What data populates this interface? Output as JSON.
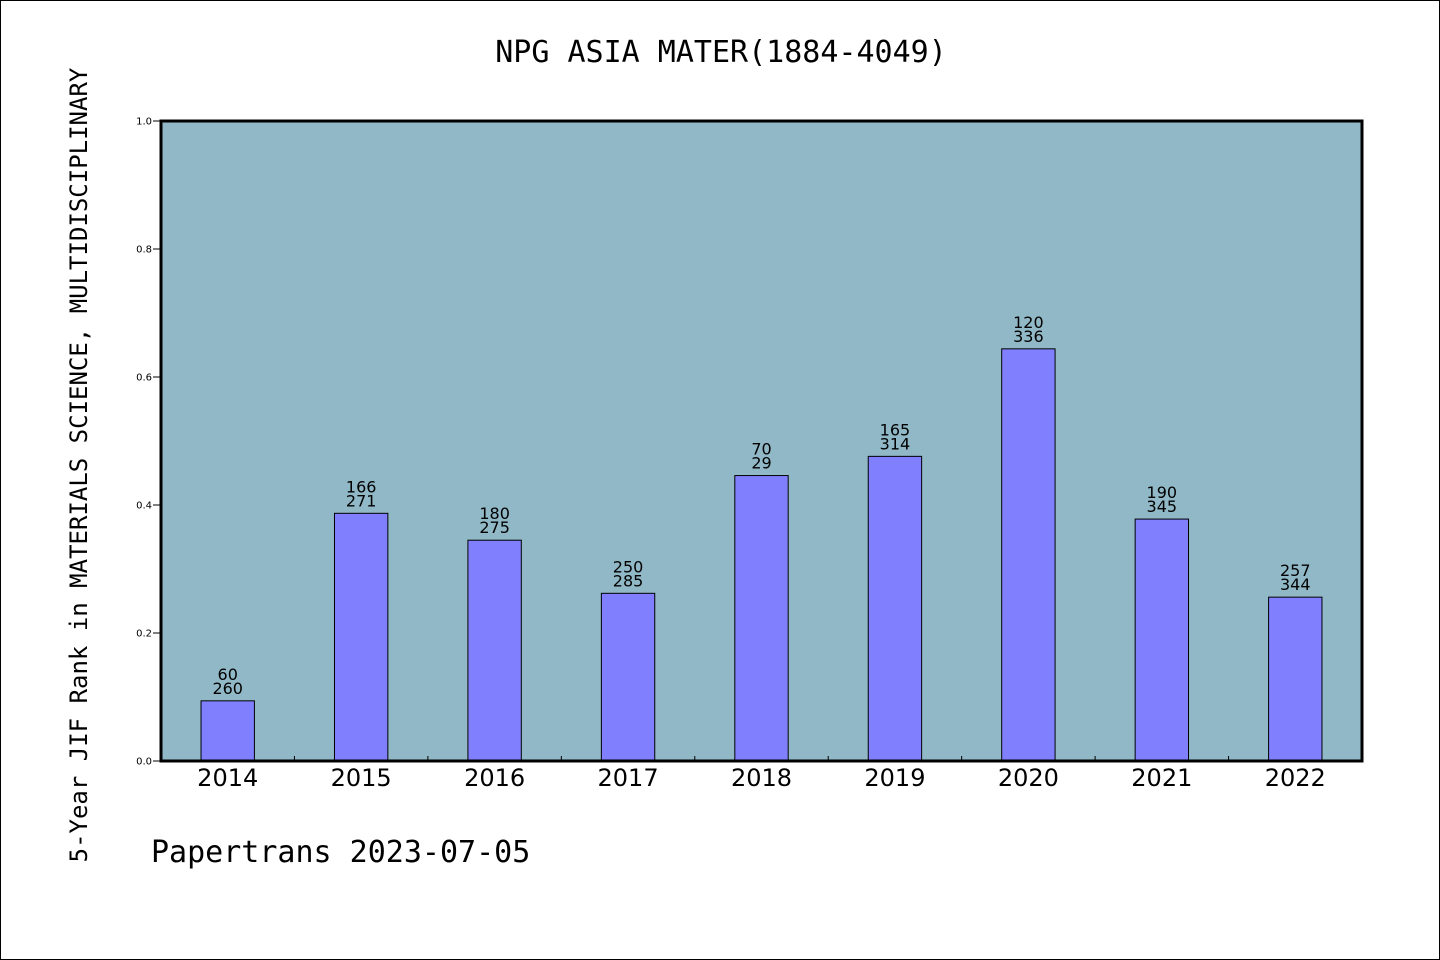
{
  "chart_data": {
    "type": "bar",
    "title": "NPG ASIA MATER(1884-4049)",
    "ylabel": "5-Year JIF Rank in MATERIALS SCIENCE, MULTIDISCIPLINARY",
    "xlabel": "",
    "ylim": [
      0,
      1.0
    ],
    "yticks": [
      "0.0",
      "0.2",
      "0.4",
      "0.6",
      "0.8",
      "1.0"
    ],
    "grid": false,
    "categories": [
      "2014",
      "2015",
      "2016",
      "2017",
      "2018",
      "2019",
      "2020",
      "2021",
      "2022"
    ],
    "values": [
      0.094,
      0.387,
      0.345,
      0.262,
      0.446,
      0.476,
      0.644,
      0.378,
      0.256
    ],
    "bar_labels": [
      [
        "60",
        "260"
      ],
      [
        "166",
        "271"
      ],
      [
        "180",
        "275"
      ],
      [
        "250",
        "285"
      ],
      [
        "70",
        "29"
      ],
      [
        "165",
        "314"
      ],
      [
        "120",
        "336"
      ],
      [
        "190",
        "345"
      ],
      [
        "257",
        "344"
      ]
    ],
    "colors": {
      "bar": "#8080ff",
      "plot_background": "#90b8c6",
      "bar_edge": "#000000"
    }
  },
  "footer": {
    "text": "Papertrans 2023-07-05"
  }
}
